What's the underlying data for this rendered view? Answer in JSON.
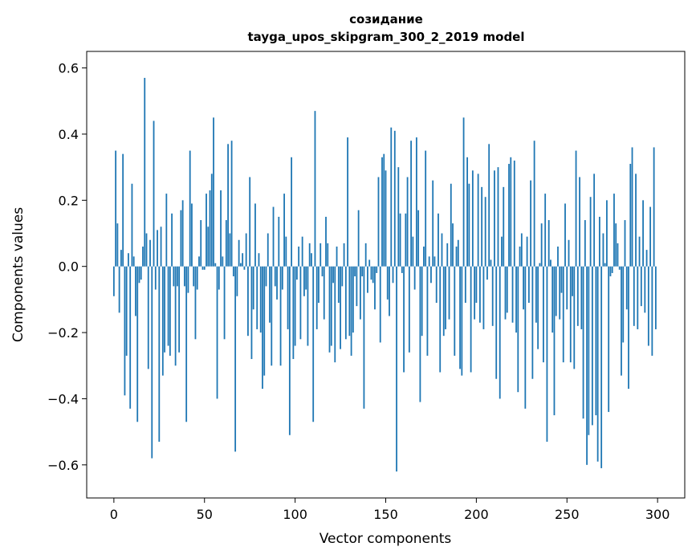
{
  "chart_data": {
    "type": "bar",
    "title": "созидание",
    "subtitle": "tayga_upos_skipgram_300_2_2019 model",
    "xlabel": "Vector components",
    "ylabel": "Components values",
    "xlim": [
      -15,
      315
    ],
    "ylim": [
      -0.7,
      0.65
    ],
    "grid": false,
    "legend": "none",
    "bar_color": "#1f77b4",
    "x_ticks": [
      0,
      50,
      100,
      150,
      200,
      250,
      300
    ],
    "x_tick_labels": [
      "0",
      "50",
      "100",
      "150",
      "200",
      "250",
      "300"
    ],
    "y_ticks": [
      -0.6,
      -0.4,
      -0.2,
      0.0,
      0.2,
      0.4,
      0.6
    ],
    "y_tick_labels": [
      "−0.6",
      "−0.4",
      "−0.2",
      "0.0",
      "0.2",
      "0.4",
      "0.6"
    ],
    "x": "0..299",
    "values": [
      -0.09,
      0.35,
      0.13,
      -0.14,
      0.05,
      0.34,
      -0.39,
      -0.27,
      0.04,
      -0.43,
      0.25,
      0.03,
      -0.15,
      -0.47,
      -0.05,
      -0.04,
      0.06,
      0.57,
      0.1,
      -0.31,
      0.08,
      -0.58,
      0.44,
      -0.07,
      0.11,
      -0.53,
      0.12,
      -0.33,
      -0.26,
      0.22,
      -0.24,
      -0.27,
      0.16,
      -0.06,
      -0.3,
      -0.06,
      -0.26,
      0.17,
      0.2,
      -0.06,
      -0.47,
      -0.08,
      0.35,
      0.19,
      -0.06,
      -0.22,
      -0.07,
      0.03,
      0.14,
      -0.01,
      -0.01,
      0.22,
      0.12,
      0.23,
      0.28,
      0.45,
      0.01,
      -0.4,
      -0.07,
      0.23,
      0.03,
      -0.22,
      0.14,
      0.37,
      0.1,
      0.38,
      -0.03,
      -0.56,
      -0.09,
      0.08,
      0.01,
      0.04,
      -0.01,
      0.1,
      -0.21,
      0.27,
      -0.28,
      -0.13,
      0.19,
      -0.19,
      0.04,
      -0.2,
      -0.37,
      -0.33,
      -0.06,
      0.1,
      -0.17,
      -0.3,
      0.18,
      -0.06,
      -0.1,
      0.15,
      -0.3,
      -0.07,
      0.22,
      0.09,
      -0.19,
      -0.51,
      0.33,
      -0.28,
      -0.24,
      -0.04,
      0.06,
      -0.22,
      0.09,
      -0.09,
      -0.07,
      -0.24,
      0.07,
      0.04,
      -0.47,
      0.47,
      -0.19,
      -0.11,
      0.07,
      -0.03,
      -0.16,
      0.15,
      0.07,
      -0.26,
      -0.24,
      -0.05,
      -0.29,
      0.06,
      -0.11,
      -0.25,
      -0.06,
      0.07,
      -0.22,
      0.39,
      -0.21,
      -0.27,
      -0.2,
      -0.03,
      -0.12,
      0.17,
      -0.16,
      -0.03,
      -0.43,
      0.07,
      -0.08,
      0.02,
      -0.04,
      -0.05,
      -0.13,
      -0.02,
      0.27,
      -0.23,
      0.33,
      0.34,
      0.29,
      -0.1,
      -0.15,
      0.42,
      -0.05,
      0.41,
      -0.62,
      0.3,
      0.16,
      -0.02,
      -0.32,
      0.16,
      0.27,
      -0.26,
      0.38,
      0.09,
      -0.07,
      0.39,
      0.17,
      -0.41,
      -0.21,
      0.06,
      0.35,
      -0.27,
      0.03,
      -0.05,
      0.26,
      0.03,
      -0.11,
      0.16,
      -0.32,
      0.1,
      -0.21,
      -0.19,
      0.07,
      -0.16,
      0.25,
      0.13,
      -0.27,
      0.06,
      0.08,
      -0.31,
      -0.33,
      0.45,
      -0.11,
      0.33,
      0.25,
      -0.32,
      0.29,
      -0.16,
      -0.11,
      0.28,
      -0.17,
      0.24,
      -0.19,
      0.21,
      -0.04,
      0.37,
      0.02,
      -0.18,
      0.29,
      -0.34,
      0.3,
      -0.4,
      0.09,
      0.24,
      -0.16,
      -0.14,
      0.31,
      0.33,
      -0.17,
      0.32,
      -0.2,
      -0.38,
      0.06,
      0.1,
      -0.13,
      -0.43,
      0.09,
      -0.11,
      0.26,
      -0.34,
      0.38,
      -0.17,
      -0.25,
      0.01,
      0.13,
      -0.29,
      0.22,
      -0.53,
      0.14,
      0.02,
      -0.2,
      -0.45,
      -0.15,
      0.06,
      -0.16,
      -0.08,
      -0.29,
      0.19,
      -0.13,
      0.08,
      -0.29,
      -0.09,
      -0.31,
      0.35,
      -0.18,
      0.27,
      -0.19,
      -0.46,
      0.14,
      -0.6,
      -0.51,
      0.21,
      -0.48,
      0.28,
      -0.45,
      -0.59,
      0.15,
      -0.61,
      0.1,
      0.01,
      0.2,
      -0.44,
      -0.03,
      -0.02,
      0.22,
      0.13,
      0.07,
      -0.01,
      -0.33,
      -0.23,
      0.14,
      -0.13,
      -0.37,
      0.31,
      0.36,
      -0.18,
      0.28,
      -0.19,
      0.09,
      -0.12,
      0.2,
      -0.14,
      0.05,
      -0.24,
      0.18,
      -0.27,
      0.36,
      -0.19
    ]
  }
}
